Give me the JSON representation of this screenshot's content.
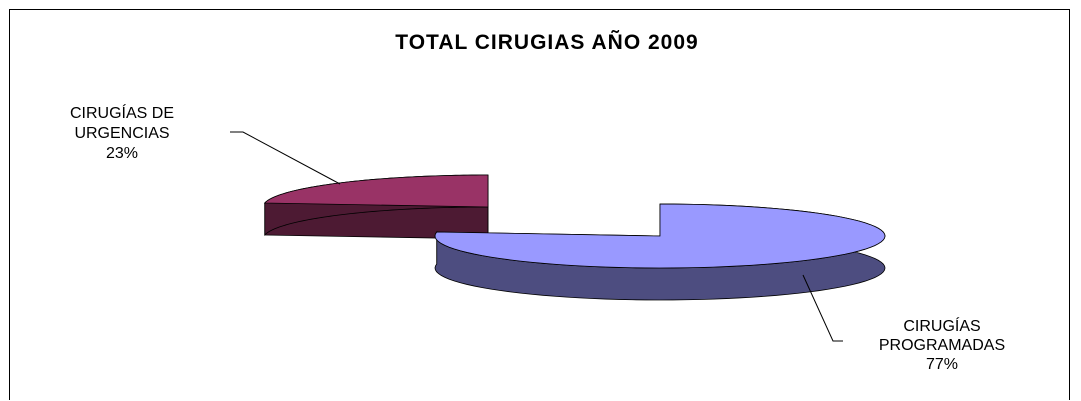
{
  "chart_data": {
    "type": "pie",
    "style": "3d-exploded",
    "title": "TOTAL CIRUGIAS AÑO 2009",
    "slices": [
      {
        "label_lines": [
          "CIRUGÍAS DE",
          "URGENCIAS"
        ],
        "percent_label": "23%",
        "value": 23,
        "color": "#993366",
        "side_color": "#4d1a33"
      },
      {
        "label_lines": [
          "CIRUGÍAS",
          "PROGRAMADAS"
        ],
        "percent_label": "77%",
        "value": 77,
        "color": "#9999ff",
        "side_color": "#4d4d80"
      }
    ],
    "legend": "none",
    "grid": false
  }
}
